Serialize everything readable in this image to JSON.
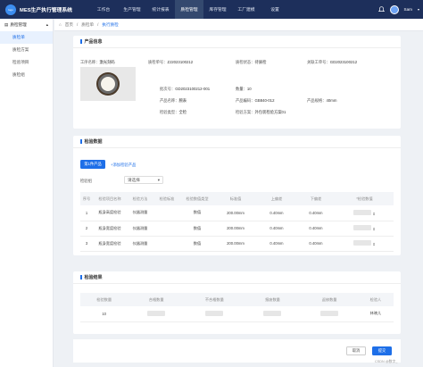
{
  "app": {
    "title": "MES生产执行管理系统",
    "logo": "logo"
  },
  "nav": [
    "工作台",
    "生产管理",
    "统计报表",
    "质检管理",
    "库存管理",
    "工厂建模",
    "设置"
  ],
  "nav_active_index": 3,
  "user": {
    "name": "Sam"
  },
  "sidebar": {
    "group": "质检管理",
    "items": [
      "质检单",
      "质检方案",
      "检验项目",
      "质检组"
    ],
    "active_index": 0
  },
  "breadcrumb": [
    "首页",
    "质检单",
    "执行质检"
  ],
  "product_info": {
    "title": "产品信息",
    "process_label": "工序名称：",
    "process_value": "激光刻码",
    "inspect_no_label": "质检单号：",
    "inspect_no_value": "ZJ2023100212",
    "status_label": "质检状态：",
    "status_value": "待质检",
    "work_order_label": "关联工单号：",
    "work_order_value": "GD2023100212",
    "batch_label": "批次号：",
    "batch_value": "GD2023100212-001",
    "qty_label": "数量：",
    "qty_value": "10",
    "product_name_label": "产品名称：",
    "product_name_value": "腕表",
    "product_code_label": "产品编码：",
    "product_code_value": "GB840-012",
    "spec_label": "产品规格：",
    "spec_value": "40mm",
    "type_label": "检验类型：",
    "type_value": "全检",
    "plan_label": "检验方案：",
    "plan_value": "外包装检验方案01"
  },
  "inspect_data": {
    "title": "检验数据",
    "tab_active": "第1件产品",
    "add_link": "+添加检验产品",
    "group_label": "检验组",
    "group_placeholder": "请选择",
    "columns": [
      "序号",
      "检验项目名称",
      "检验方法",
      "检验标准",
      "检验数值类型",
      "标准值",
      "上偏差",
      "下偏差",
      "*检验数值"
    ],
    "rows": [
      {
        "no": "1",
        "name": "瓶身高度检验",
        "method": "仪器测量",
        "std": "",
        "vtype": "数值",
        "value": "200.00mm",
        "up": "0.40mm",
        "down": "0.40mm"
      },
      {
        "no": "2",
        "name": "瓶身宽度检验",
        "method": "仪器测量",
        "std": "",
        "vtype": "数值",
        "value": "200.00mm",
        "up": "0.40mm",
        "down": "0.40mm"
      },
      {
        "no": "3",
        "name": "瓶身宽度检验",
        "method": "仪器测量",
        "std": "",
        "vtype": "数值",
        "value": "200.00mm",
        "up": "0.40mm",
        "down": "0.40mm"
      }
    ]
  },
  "result": {
    "title": "检验结果",
    "columns": [
      "检验数量",
      "合格数量",
      "不合格数量",
      "报废数量",
      "返修数量",
      "检验人"
    ],
    "row": {
      "inspect_qty": "10",
      "inspector": "林晓儿"
    }
  },
  "footer": {
    "cancel": "取消",
    "submit": "提交"
  },
  "watermark": "CSDN @数字_"
}
